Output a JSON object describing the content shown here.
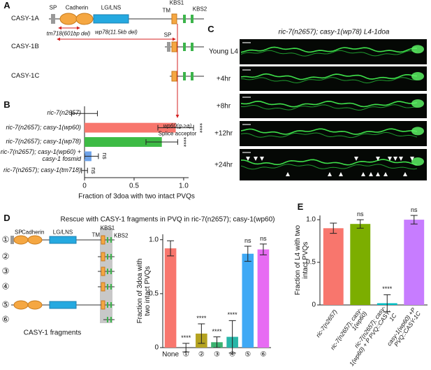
{
  "panel_labels": [
    "A",
    "B",
    "C",
    "D",
    "E"
  ],
  "diagram_a": {
    "isoforms": [
      "CASY-1A",
      "CASY-1B",
      "CASY-1C"
    ],
    "domains": {
      "sp": "SP",
      "cadherin": "Cadherin",
      "lg_lns": "LG/LNS",
      "kbs1": "KBS1",
      "tm": "TM",
      "kbs2": "KBS2",
      "sp_b": "SP"
    },
    "deletions": [
      "tm718(601bp del)",
      "wp78(11.5kb del)"
    ],
    "mutation": "wp60(g->a)",
    "mutation_effect": "Splice acceptor"
  },
  "panel_c": {
    "title": "ric-7(n2657); casy-1(wp78) L4-1doa",
    "rows": [
      "Young L4",
      "+4hr",
      "+8hr",
      "+12hr",
      "+24hr"
    ]
  },
  "diagram_d": {
    "title": "Rescue with CASY-1 fragments in PVQ in ric-7(n2657); casy-1(wp60)",
    "domains": {
      "sp": "SP",
      "cadherin": "Cadherin",
      "lg_lns": "LG/LNS",
      "kbs1": "KBS1",
      "tm": "TM",
      "kbs2": "KBS2"
    },
    "fragments": [
      "①",
      "②",
      "③",
      "④",
      "⑤",
      "⑥"
    ],
    "caption": "CASY-1 fragments"
  },
  "chart_data": [
    {
      "type": "bar",
      "orientation": "horizontal",
      "categories": [
        "ric-7(n2657)",
        "ric-7(n2657); casy-1(wp60)",
        "ric-7(n2657); casy-1(wp78)",
        "ric-7(n2657); casy-1(wp60) + casy-1 fosmid",
        "ric-7(n2657); casy-1(tm718)"
      ],
      "values": [
        0,
        0.92,
        0.78,
        0.07,
        0
      ],
      "errors": [
        0.13,
        0.18,
        0.16,
        0.07,
        0.03
      ],
      "colors": [
        "#f8766d",
        "#f8766d",
        "#3dbb45",
        "#6fa3e8",
        "#999999"
      ],
      "annotations": [
        null,
        "****",
        "****",
        "ns",
        "ns"
      ],
      "xlabel": "Fraction of 3doa with two intact PVQs",
      "xlim": [
        0,
        1.05
      ],
      "xticks": [
        0,
        0.5,
        {
          "value": 1,
          "label": "1.0"
        }
      ]
    },
    {
      "type": "bar",
      "categories": [
        "None",
        "①",
        "②",
        "③",
        "④",
        "⑤",
        "⑥"
      ],
      "values": [
        0.92,
        0,
        0.13,
        0.05,
        0.1,
        0.87,
        0.91
      ],
      "errors": [
        0.07,
        0.04,
        0.09,
        0.05,
        0.15,
        0.07,
        0.05
      ],
      "colors": [
        "#f8766d",
        "#c49a00",
        "#b5a320",
        "#3cb371",
        "#29b6a8",
        "#3fa9f5",
        "#e76bf3"
      ],
      "annotations": [
        null,
        "****",
        "****",
        "****",
        "****",
        "ns",
        "ns"
      ],
      "ylabel": "Fraction of 3doa with two intact PVQs",
      "ylim": [
        0,
        1.05
      ],
      "yticks": [
        0,
        0.5,
        {
          "value": 1,
          "label": "1.0"
        }
      ]
    },
    {
      "type": "bar",
      "categories": [
        "ric-7(n2657)",
        "ric-7(n2657); casy-1(wp60)",
        "ric-7(n2657); casy-1(wp60) + P PVQ::CASY-1C",
        "casy-1(wp60) +P PVQ::CASY-1C"
      ],
      "values": [
        0.9,
        0.95,
        0.02,
        1.0
      ],
      "errors": [
        0.06,
        0.05,
        0.1,
        0.05
      ],
      "colors": [
        "#f8766d",
        "#7cae00",
        "#00bfc4",
        "#c77cff"
      ],
      "annotations": [
        null,
        "ns",
        "****",
        "ns"
      ],
      "ylabel": "Fraction of L4 with two intact PVQs",
      "ylim": [
        0,
        1.05
      ],
      "yticks": [
        0,
        0.5,
        {
          "value": 1,
          "label": "1.0"
        }
      ]
    }
  ]
}
